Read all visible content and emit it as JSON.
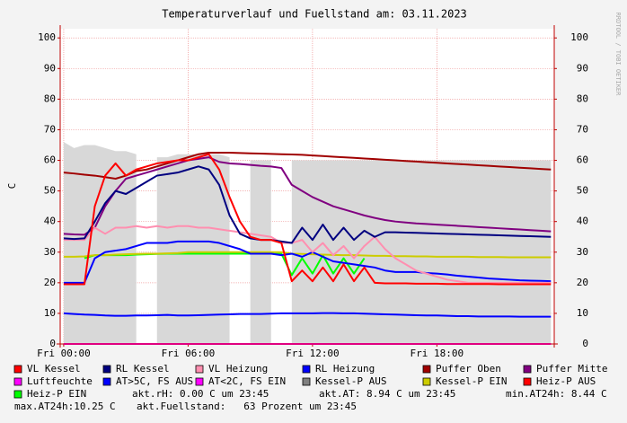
{
  "chart_data": {
    "type": "line",
    "title": "Temperaturverlauf und Fuellstand am: 03.11.2023",
    "y_label": "C",
    "watermark": "RRDTOOL / TOBI OETIKER",
    "x": [
      0,
      0.5,
      1,
      1.5,
      2,
      2.5,
      3,
      3.5,
      4,
      4.5,
      5,
      5.5,
      6,
      6.5,
      7,
      7.5,
      8,
      8.5,
      9,
      9.5,
      10,
      10.5,
      11,
      11.5,
      12,
      12.5,
      13,
      13.5,
      14,
      14.5,
      15,
      15.5,
      16,
      16.5,
      17,
      17.5,
      18,
      18.5,
      19,
      19.5,
      20,
      20.5,
      21,
      21.5,
      22,
      22.5,
      23,
      23.5
    ],
    "xlim": [
      -0.17,
      23.66
    ],
    "xticks": [
      {
        "value": 0,
        "label": "Fri 00:00"
      },
      {
        "value": 6,
        "label": "Fri 06:00"
      },
      {
        "value": 12,
        "label": "Fri 12:00"
      },
      {
        "value": 18,
        "label": "Fri 18:00"
      }
    ],
    "ylim": [
      0,
      103
    ],
    "yticks": [
      0,
      10,
      20,
      30,
      40,
      50,
      60,
      70,
      80,
      90,
      100
    ],
    "y2lim": [
      0,
      103
    ],
    "y2ticks": [
      0,
      10,
      20,
      30,
      40,
      50,
      60,
      70,
      80,
      90,
      100
    ],
    "grid": true,
    "series": [
      {
        "name": "VL Kessel",
        "color": "#ff0000",
        "values": [
          19.5,
          19.5,
          19.5,
          45,
          55,
          59,
          55,
          57,
          58,
          59,
          59.5,
          60,
          60,
          61,
          62,
          57,
          48,
          40,
          35,
          34,
          34,
          33,
          20.5,
          24,
          20.5,
          25,
          20.5,
          26,
          20.5,
          25,
          20,
          19.8,
          19.8,
          19.8,
          19.7,
          19.7,
          19.7,
          19.6,
          19.6,
          19.6,
          19.6,
          19.6,
          19.5,
          19.5,
          19.5,
          19.5,
          19.5,
          19.5
        ]
      },
      {
        "name": "RL Kessel",
        "color": "#000080",
        "values": [
          34.5,
          34.3,
          34.5,
          40,
          46,
          50,
          49,
          51,
          53,
          55,
          55.5,
          56,
          57,
          58,
          57,
          52,
          42,
          36,
          34.5,
          34,
          34,
          33.5,
          33,
          38,
          34,
          39,
          34,
          38,
          34,
          37,
          35,
          36.5,
          36.5,
          36.4,
          36.3,
          36.2,
          36.1,
          36,
          35.9,
          35.8,
          35.7,
          35.6,
          35.5,
          35.4,
          35.3,
          35.2,
          35.1,
          35
        ]
      },
      {
        "name": "VL Heizung",
        "color": "#ff8fb0",
        "values": [
          34,
          34,
          34,
          38,
          36,
          38,
          38,
          38.5,
          38,
          38.5,
          38,
          38.5,
          38.5,
          38,
          38,
          37.5,
          37,
          36.5,
          36,
          35.5,
          35,
          33,
          33,
          34,
          30,
          33,
          29,
          32,
          28,
          32,
          35,
          31,
          28,
          26,
          24,
          23,
          22,
          21,
          20.5,
          20,
          20,
          20,
          20,
          20,
          20,
          20,
          20,
          20
        ]
      },
      {
        "name": "RL Heizung",
        "color": "#0000ff",
        "values": [
          20,
          20,
          20,
          28,
          30,
          30.5,
          31,
          32,
          33,
          33,
          33,
          33.5,
          33.5,
          33.5,
          33.5,
          33,
          32,
          31,
          29.5,
          29.5,
          29.5,
          29,
          29.5,
          28.5,
          30,
          28.5,
          27,
          26.5,
          26,
          25.5,
          25,
          24,
          23.5,
          23.5,
          23.5,
          23.2,
          23,
          22.7,
          22.3,
          22,
          21.7,
          21.4,
          21.2,
          21,
          20.8,
          20.7,
          20.6,
          20.5
        ]
      },
      {
        "name": "Puffer Oben",
        "color": "#a00000",
        "values": [
          56,
          55.7,
          55.3,
          55,
          54.5,
          54,
          55,
          56.5,
          57,
          58,
          59,
          60,
          61,
          62,
          62.5,
          62.5,
          62.5,
          62.4,
          62.3,
          62.2,
          62.1,
          62,
          61.9,
          61.8,
          61.6,
          61.4,
          61.2,
          61,
          60.8,
          60.6,
          60.4,
          60.2,
          60,
          59.8,
          59.6,
          59.4,
          59.2,
          59,
          58.8,
          58.6,
          58.4,
          58.2,
          58,
          57.8,
          57.6,
          57.4,
          57.2,
          57
        ]
      },
      {
        "name": "Puffer Mitte",
        "color": "#800080",
        "values": [
          36,
          35.8,
          35.7,
          38,
          45,
          50,
          54,
          55,
          56,
          57,
          58,
          59,
          60,
          60.5,
          61,
          59.5,
          59,
          58.8,
          58.5,
          58.2,
          58,
          57.5,
          52,
          50,
          48,
          46.5,
          45,
          44,
          43,
          42,
          41.2,
          40.5,
          40,
          39.7,
          39.4,
          39.2,
          39,
          38.8,
          38.6,
          38.4,
          38.2,
          38,
          37.8,
          37.6,
          37.4,
          37.2,
          37,
          36.8
        ]
      },
      {
        "name": "Luftfeuchte",
        "color": "#ff00ff",
        "values": [
          0,
          0,
          0,
          0,
          0,
          0,
          0,
          0,
          0,
          0,
          0,
          0,
          0,
          0,
          0,
          0,
          0,
          0,
          0,
          0,
          0,
          0,
          0,
          0,
          0,
          0,
          0,
          0,
          0,
          0,
          0,
          0,
          0,
          0,
          0,
          0,
          0,
          0,
          0,
          0,
          0,
          0,
          0,
          0,
          0,
          0,
          0,
          0
        ]
      },
      {
        "name": "AT>5C, FS AUS",
        "color": "#0000ff",
        "values": [
          10,
          9.8,
          9.6,
          9.5,
          9.3,
          9.2,
          9.2,
          9.3,
          9.3,
          9.4,
          9.5,
          9.3,
          9.3,
          9.4,
          9.5,
          9.6,
          9.7,
          9.8,
          9.8,
          9.8,
          9.9,
          10,
          10,
          10,
          10,
          10.1,
          10.1,
          10,
          10,
          9.9,
          9.8,
          9.7,
          9.6,
          9.5,
          9.4,
          9.3,
          9.3,
          9.2,
          9.1,
          9.1,
          9,
          9,
          9,
          9,
          8.9,
          8.9,
          8.9,
          8.9
        ]
      },
      {
        "name": "AT<2C, FS EIN",
        "color": "#ff00ff",
        "values": [
          null,
          null,
          null,
          null,
          null,
          null,
          null,
          null,
          null,
          null,
          null,
          null,
          null,
          null,
          null,
          null,
          null,
          null,
          null,
          null,
          null,
          null,
          null,
          null,
          null,
          null,
          null,
          null,
          null,
          null,
          null,
          null,
          null,
          null,
          null,
          null,
          null,
          null,
          null,
          null,
          null,
          null,
          null,
          null,
          null,
          null,
          null,
          null
        ]
      },
      {
        "name": "Kessel-P AUS",
        "color": "#808080",
        "area": true,
        "fill": "#d8d8d8",
        "values": [
          66,
          64,
          65,
          65,
          64,
          63,
          63,
          62,
          null,
          61,
          61,
          62,
          62,
          62,
          62,
          62,
          61,
          null,
          60,
          60,
          60,
          null,
          60,
          60,
          60,
          60,
          60,
          60,
          60,
          60,
          60,
          60,
          60,
          60,
          60,
          60,
          60,
          60,
          60,
          60,
          60,
          60,
          60,
          60,
          60,
          60,
          60,
          60
        ]
      },
      {
        "name": "Kessel-P EIN",
        "color": "#cccc00",
        "values": [
          28.5,
          28.5,
          28.6,
          29,
          29,
          29.2,
          29.3,
          29.4,
          29.5,
          29.5,
          29.6,
          29.7,
          30,
          30,
          30,
          30,
          30,
          30,
          30,
          30,
          30,
          30,
          29.5,
          29.4,
          29.3,
          29.2,
          29.1,
          29,
          29,
          28.9,
          28.8,
          28.8,
          28.7,
          28.7,
          28.6,
          28.6,
          28.5,
          28.5,
          28.5,
          28.5,
          28.4,
          28.4,
          28.4,
          28.3,
          28.3,
          28.3,
          28.3,
          28.3
        ]
      },
      {
        "name": "Heiz-P AUS",
        "color": "#ff0000",
        "values": [
          null,
          null,
          null,
          null,
          null,
          null,
          null,
          null,
          null,
          null,
          null,
          null,
          null,
          null,
          null,
          null,
          null,
          null,
          null,
          null,
          null,
          null,
          null,
          null,
          null,
          null,
          null,
          null,
          null,
          null,
          null,
          null,
          null,
          null,
          null,
          null,
          null,
          null,
          null,
          null,
          null,
          null,
          null,
          null,
          null,
          null,
          null,
          null
        ]
      },
      {
        "name": "Heiz-P EIN",
        "color": "#00ff00",
        "values": [
          null,
          null,
          28,
          29,
          29,
          29,
          29,
          29.2,
          29.3,
          29.4,
          29.5,
          29.5,
          29.5,
          29.5,
          29.5,
          29.5,
          29.5,
          29.5,
          29.5,
          29.5,
          29.5,
          29.5,
          22.5,
          28,
          23,
          29,
          23,
          28,
          23,
          28,
          null,
          null,
          null,
          null,
          null,
          null,
          null,
          null,
          null,
          null,
          null,
          null,
          null,
          null,
          null,
          null,
          null,
          null
        ]
      }
    ],
    "comments": [
      "akt.rH: 0.00 C um 23:45",
      "akt.AT: 8.94 C um 23:45",
      "min.AT24h: 8.44 C",
      "max.AT24h:10.25 C",
      "akt.Fuellstand:   63 Prozent um 23:45"
    ]
  }
}
